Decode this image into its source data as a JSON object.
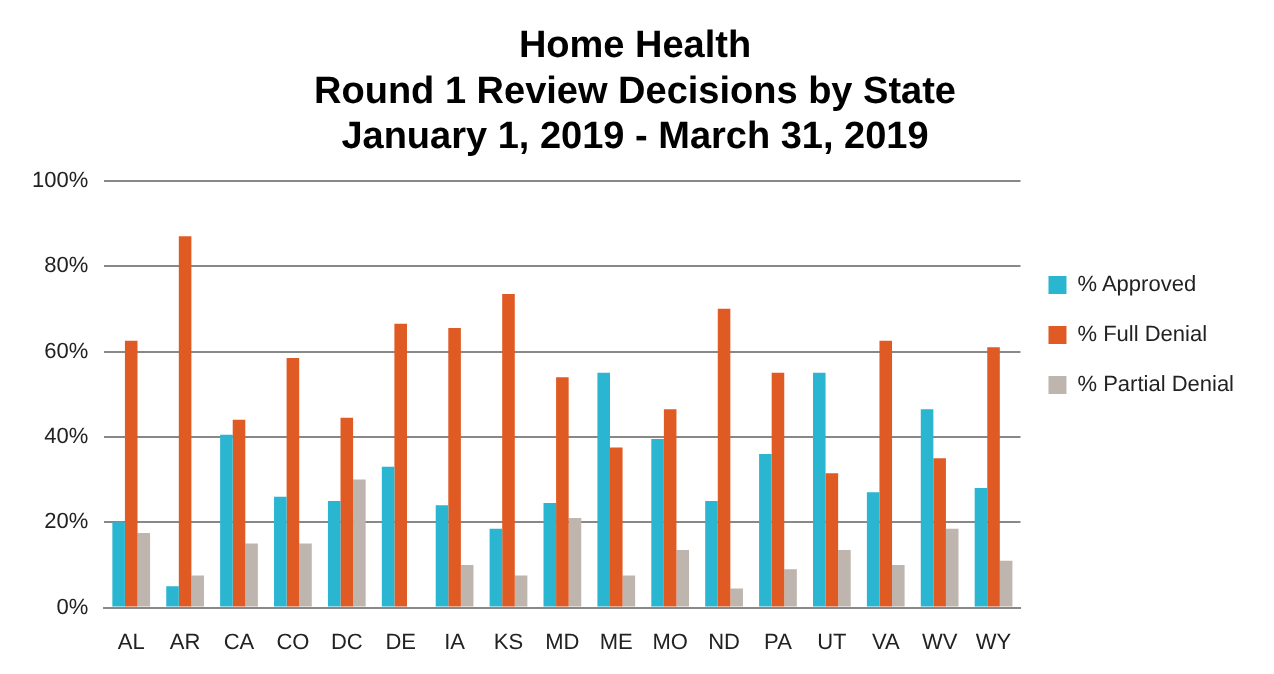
{
  "chart_data": {
    "type": "bar",
    "title": [
      "Home Health",
      "Round 1 Review Decisions by State",
      "January 1, 2019 - March 31, 2019"
    ],
    "categories": [
      "AL",
      "AR",
      "CA",
      "CO",
      "DC",
      "DE",
      "IA",
      "KS",
      "MD",
      "ME",
      "MO",
      "ND",
      "PA",
      "UT",
      "VA",
      "WV",
      "WY"
    ],
    "series": [
      {
        "name": "% Approved",
        "color": "#2ab5d1",
        "values": [
          20,
          5,
          40.5,
          26,
          25,
          33,
          24,
          18.5,
          24.5,
          55,
          39.5,
          25,
          36,
          55,
          27,
          46.5,
          28
        ]
      },
      {
        "name": "% Full Denial",
        "color": "#e05a24",
        "values": [
          62.5,
          87,
          44,
          58.5,
          44.5,
          66.5,
          65.5,
          73.5,
          54,
          37.5,
          46.5,
          70,
          55,
          31.5,
          62.5,
          35,
          61
        ]
      },
      {
        "name": "% Partial Denial",
        "color": "#bdb5ae",
        "values": [
          17.5,
          7.5,
          15,
          15,
          30,
          0,
          10,
          7.5,
          21,
          7.5,
          13.5,
          4.5,
          9,
          13.5,
          10,
          18.5,
          11
        ]
      }
    ],
    "ylim": [
      0,
      100
    ],
    "yticks": [
      {
        "value": 0,
        "label": "0%"
      },
      {
        "value": 20,
        "label": "20%"
      },
      {
        "value": 40,
        "label": "40%"
      },
      {
        "value": 60,
        "label": "60%"
      },
      {
        "value": 80,
        "label": "80%"
      },
      {
        "value": 100,
        "label": "100%"
      }
    ],
    "grid": "y",
    "legend": "right"
  }
}
